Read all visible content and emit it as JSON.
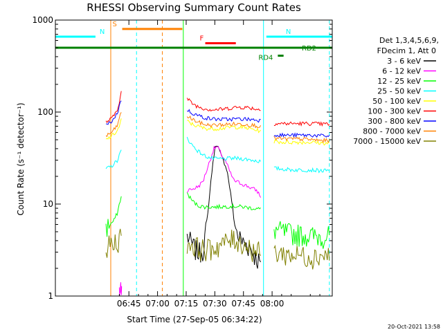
{
  "chart_data": {
    "type": "line",
    "title": "RHESSI Observing Summary Count Rates",
    "xlabel": "Start Time (27-Sep-05 06:34:22)",
    "ylabel": "Count Rate (s⁻¹ detector⁻¹)",
    "yscale": "log",
    "xlim_minutes": [
      6.5,
      151.5
    ],
    "ylim": [
      1,
      1000
    ],
    "x_ticks": [
      {
        "minute": 45,
        "label": "06:45"
      },
      {
        "minute": 60,
        "label": "07:00"
      },
      {
        "minute": 75,
        "label": "07:15"
      },
      {
        "minute": 90,
        "label": "07:30"
      },
      {
        "minute": 105,
        "label": "07:45"
      },
      {
        "minute": 120,
        "label": "08:00"
      }
    ],
    "y_ticks": [
      {
        "value": 1,
        "label": "1"
      },
      {
        "value": 10,
        "label": "10"
      },
      {
        "value": 100,
        "label": "100"
      },
      {
        "value": 1000,
        "label": "1000"
      }
    ],
    "legend_header": [
      "Det 1,3,4,5,6,9,",
      "FDecim 1, Att 0"
    ],
    "series": [
      {
        "name": "3 - 6 keV",
        "color": "#000000",
        "seg1": [],
        "seg2": [
          [
            75.5,
            4.5
          ],
          [
            78,
            3.6
          ],
          [
            80,
            3.2
          ],
          [
            82,
            3.0
          ],
          [
            84,
            3.3
          ],
          [
            86,
            6
          ],
          [
            87.5,
            14
          ],
          [
            89,
            27
          ],
          [
            90,
            40
          ],
          [
            91,
            46
          ],
          [
            92,
            40
          ],
          [
            93,
            35
          ],
          [
            94,
            31
          ],
          [
            96,
            25
          ],
          [
            98,
            14
          ],
          [
            100,
            6.5
          ],
          [
            102,
            4.5
          ],
          [
            105,
            3.8
          ],
          [
            108,
            3.5
          ],
          [
            110,
            3.0
          ],
          [
            112,
            2.6
          ],
          [
            114,
            2.2
          ]
        ]
      },
      {
        "name": "6 - 12 keV",
        "color": "#ff00ff",
        "seg1": [
          [
            40,
            1
          ],
          [
            40.8,
            1.3
          ],
          [
            41.2,
            1.2
          ]
        ],
        "seg2": [
          [
            75.5,
            14
          ],
          [
            78,
            14.5
          ],
          [
            80,
            15
          ],
          [
            82,
            16
          ],
          [
            84,
            18
          ],
          [
            86,
            24
          ],
          [
            88,
            32
          ],
          [
            89.5,
            40
          ],
          [
            91,
            42
          ],
          [
            92,
            40
          ],
          [
            93,
            36
          ],
          [
            94,
            33
          ],
          [
            96,
            28
          ],
          [
            98,
            22
          ],
          [
            100,
            18
          ],
          [
            103,
            17
          ],
          [
            106,
            16
          ],
          [
            109,
            15
          ],
          [
            112,
            14
          ],
          [
            114,
            12
          ]
        ]
      },
      {
        "name": "12 - 25 keV",
        "color": "#00ff00",
        "seg1": [
          [
            33,
            5.5
          ],
          [
            35,
            6
          ],
          [
            37,
            6.5
          ],
          [
            39,
            8
          ],
          [
            40,
            10
          ],
          [
            41,
            12
          ]
        ],
        "seg2": [
          [
            75.5,
            13
          ],
          [
            78,
            11
          ],
          [
            80,
            10
          ],
          [
            82,
            9.5
          ],
          [
            85,
            9.3
          ],
          [
            90,
            9.3
          ],
          [
            95,
            9.4
          ],
          [
            100,
            9.5
          ],
          [
            105,
            9.3
          ],
          [
            110,
            9.0
          ],
          [
            114,
            8.8
          ]
        ],
        "seg3": [
          [
            121,
            5.3
          ],
          [
            126,
            5.0
          ],
          [
            131,
            4.8
          ],
          [
            136,
            4.7
          ],
          [
            141,
            4.5
          ],
          [
            146,
            4.5
          ],
          [
            150,
            4.5
          ]
        ]
      },
      {
        "name": "25 - 50 keV",
        "color": "#00ffff",
        "seg1": [
          [
            33,
            24
          ],
          [
            35,
            25
          ],
          [
            37,
            27
          ],
          [
            39,
            30
          ],
          [
            40,
            34
          ],
          [
            41,
            38
          ]
        ],
        "seg2": [
          [
            75.5,
            52
          ],
          [
            78,
            44
          ],
          [
            81,
            38
          ],
          [
            84,
            34
          ],
          [
            87,
            32
          ],
          [
            90,
            31
          ],
          [
            95,
            31
          ],
          [
            100,
            31.5
          ],
          [
            105,
            31
          ],
          [
            110,
            30
          ],
          [
            114,
            29
          ]
        ],
        "seg3": [
          [
            121,
            24.5
          ],
          [
            126,
            24
          ],
          [
            131,
            23.5
          ],
          [
            136,
            23.5
          ],
          [
            141,
            23.5
          ],
          [
            146,
            23
          ],
          [
            150,
            23
          ]
        ]
      },
      {
        "name": "50 - 100 keV",
        "color": "#ffff00",
        "seg1": [
          [
            33,
            50
          ],
          [
            35,
            53
          ],
          [
            37,
            57
          ],
          [
            39,
            63
          ],
          [
            40,
            70
          ],
          [
            41,
            82
          ]
        ],
        "seg2": [
          [
            75.5,
            80
          ],
          [
            78,
            74
          ],
          [
            81,
            70
          ],
          [
            84,
            67
          ],
          [
            87,
            66
          ],
          [
            90,
            66
          ],
          [
            95,
            67
          ],
          [
            100,
            69
          ],
          [
            105,
            68
          ],
          [
            110,
            65
          ],
          [
            114,
            62
          ]
        ],
        "seg3": [
          [
            121,
            48
          ],
          [
            126,
            47
          ],
          [
            131,
            47
          ],
          [
            136,
            47
          ],
          [
            141,
            47
          ],
          [
            146,
            46
          ],
          [
            150,
            46
          ]
        ]
      },
      {
        "name": "100 - 300 keV",
        "color": "#ff0000",
        "seg1": [
          [
            33,
            78
          ],
          [
            35,
            82
          ],
          [
            37,
            90
          ],
          [
            39,
            108
          ],
          [
            40,
            130
          ],
          [
            41,
            165
          ]
        ],
        "seg2": [
          [
            75.5,
            140
          ],
          [
            78,
            125
          ],
          [
            81,
            115
          ],
          [
            84,
            110
          ],
          [
            87,
            107
          ],
          [
            90,
            106
          ],
          [
            95,
            108
          ],
          [
            100,
            112
          ],
          [
            103,
            113
          ],
          [
            107,
            112
          ],
          [
            110,
            110
          ],
          [
            114,
            105
          ]
        ],
        "seg3": [
          [
            121,
            75
          ],
          [
            126,
            75
          ],
          [
            131,
            75
          ],
          [
            136,
            75
          ],
          [
            141,
            75
          ],
          [
            146,
            74
          ],
          [
            150,
            74
          ]
        ]
      },
      {
        "name": "300 - 800 keV",
        "color": "#0000ff",
        "seg1": [
          [
            33,
            72
          ],
          [
            35,
            76
          ],
          [
            37,
            84
          ],
          [
            39,
            98
          ],
          [
            40,
            115
          ],
          [
            41,
            138
          ]
        ],
        "seg2": [
          [
            75.5,
            105
          ],
          [
            78,
            98
          ],
          [
            81,
            92
          ],
          [
            84,
            88
          ],
          [
            87,
            85
          ],
          [
            90,
            84
          ],
          [
            95,
            83
          ],
          [
            100,
            84
          ],
          [
            105,
            84
          ],
          [
            110,
            83
          ],
          [
            114,
            81
          ]
        ],
        "seg3": [
          [
            121,
            57
          ],
          [
            126,
            56
          ],
          [
            131,
            56
          ],
          [
            136,
            56
          ],
          [
            141,
            56
          ],
          [
            146,
            55
          ],
          [
            150,
            55
          ]
        ]
      },
      {
        "name": "800 - 7000 keV",
        "color": "#ff8000",
        "seg1": [
          [
            33,
            55
          ],
          [
            35,
            58
          ],
          [
            37,
            63
          ],
          [
            39,
            72
          ],
          [
            40,
            84
          ],
          [
            41,
            100
          ]
        ],
        "seg2": [
          [
            75.5,
            90
          ],
          [
            78,
            84
          ],
          [
            81,
            78
          ],
          [
            84,
            74
          ],
          [
            87,
            72
          ],
          [
            90,
            72
          ],
          [
            95,
            73
          ],
          [
            100,
            74
          ],
          [
            105,
            74
          ],
          [
            110,
            72
          ],
          [
            114,
            70
          ]
        ],
        "seg3": [
          [
            121,
            52
          ],
          [
            126,
            51
          ],
          [
            131,
            51
          ],
          [
            136,
            51
          ],
          [
            141,
            50
          ],
          [
            146,
            49
          ],
          [
            150,
            49
          ]
        ]
      },
      {
        "name": "7000 - 15000 keV",
        "color": "#808000",
        "seg1": [
          [
            33,
            3.5
          ],
          [
            35,
            3.6
          ],
          [
            37,
            3.8
          ],
          [
            39,
            4.0
          ],
          [
            40,
            4.2
          ],
          [
            41,
            4.5
          ]
        ],
        "seg2": [
          [
            75.5,
            3.8
          ],
          [
            80,
            3.5
          ],
          [
            85,
            3.2
          ],
          [
            90,
            3.4
          ],
          [
            95,
            3.8
          ],
          [
            100,
            4.2
          ],
          [
            105,
            3.7
          ],
          [
            110,
            3.2
          ],
          [
            114,
            3.0
          ]
        ],
        "seg3": [
          [
            121,
            3.0
          ],
          [
            126,
            2.9
          ],
          [
            131,
            2.8
          ],
          [
            136,
            2.8
          ],
          [
            141,
            2.7
          ],
          [
            146,
            2.8
          ],
          [
            150,
            2.8
          ]
        ]
      }
    ],
    "orbit_flags": [
      {
        "label": "S",
        "color": "#ff8000",
        "start": 41.5,
        "end": 73,
        "value": 800
      },
      {
        "label": "N",
        "color": "#00ffff",
        "start": 6.5,
        "end": 27.5,
        "value": 660
      },
      {
        "label": "N",
        "color": "#00ffff",
        "start": 117,
        "end": 151.5,
        "value": 660
      },
      {
        "label": "F",
        "color": "#ff0000",
        "start": 85,
        "end": 101,
        "value": 560
      },
      {
        "label": "RD2",
        "color": "#008000",
        "start": 6.5,
        "end": 151.5,
        "value": 500
      },
      {
        "label": "RD4",
        "color": "#008000",
        "start": 123,
        "end": 126,
        "value": 410
      }
    ],
    "vertical_markers": [
      {
        "minute": 35.5,
        "color": "#ff8000",
        "style": "solid"
      },
      {
        "minute": 49,
        "color": "#00ffff",
        "style": "dashed"
      },
      {
        "minute": 62.5,
        "color": "#ff8000",
        "style": "dashed"
      },
      {
        "minute": 73.5,
        "color": "#00ff00",
        "style": "solid"
      },
      {
        "minute": 115.5,
        "color": "#00ffff",
        "style": "solid"
      },
      {
        "minute": 150,
        "color": "#00ffff",
        "style": "dashed"
      }
    ],
    "footer": "20-Oct-2021 13:58"
  }
}
